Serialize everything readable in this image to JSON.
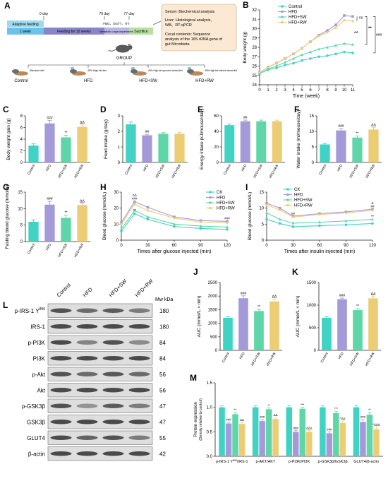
{
  "panel_labels": {
    "A": "A",
    "B": "B",
    "C": "C",
    "D": "D",
    "E": "E",
    "F": "F",
    "G": "G",
    "H": "H",
    "I": "I",
    "J": "J",
    "K": "K",
    "L": "L",
    "M": "M"
  },
  "colors": {
    "control": "#40d2c3",
    "hfd": "#a59ad9",
    "sw": "#5ed6a8",
    "rw": "#edcc76",
    "wb_bg": "#dedede",
    "band": "#3a3a3a"
  },
  "groups": [
    "Control",
    "HFD",
    "HFD+SW",
    "HFD+RW"
  ],
  "panel_A": {
    "timeline": {
      "days": [
        "0 day",
        "70 day",
        "77 day"
      ],
      "segments": [
        "Adaptive feeding",
        "1 week",
        "Feeding for 10 weeks",
        "FBG、OGTT、ITT",
        "Metabolic cage experiment",
        "Sacrifice"
      ]
    },
    "analysis_lines": [
      "Serum:  Biochemical analysis",
      "Liver: Histological analysis,",
      "WB、RT-qPCR",
      "Cecal contents:  Sequence",
      "analysis of the 16S rRNA gene of",
      "gut Microbiota"
    ],
    "group_title": "GROUP",
    "diets": [
      {
        "desc": "Standard diet",
        "label": "Control"
      },
      {
        "desc": "45% High-fat diet",
        "label": "HFD"
      },
      {
        "desc": "45% High-fat sprouted wheat diet",
        "label": "HFD+SW"
      },
      {
        "desc": "45% High-fat refined wheat diet",
        "label": "HFD+RW"
      }
    ]
  },
  "chart_data": [
    {
      "id": "B",
      "type": "line",
      "xlabel": "Time (week)",
      "ylabel": "Body weight (g)",
      "x": [
        0,
        1,
        2,
        3,
        4,
        5,
        6,
        7,
        8,
        9,
        10,
        11
      ],
      "xlim": [
        0,
        11
      ],
      "ylim": [
        24,
        32
      ],
      "yticks": [
        24,
        25,
        26,
        27,
        28,
        29,
        30,
        31,
        32
      ],
      "series": [
        {
          "name": "Control",
          "values": [
            25.2,
            25.6,
            25.8,
            26.1,
            26.3,
            26.6,
            26.8,
            27.0,
            27.1,
            27.3,
            27.5,
            27.4
          ]
        },
        {
          "name": "HFD",
          "values": [
            25.3,
            25.9,
            26.3,
            26.8,
            27.3,
            27.9,
            28.6,
            29.3,
            29.8,
            30.4,
            31.4,
            31.3
          ]
        },
        {
          "name": "HFD+SW",
          "values": [
            25.2,
            25.7,
            26.0,
            26.4,
            26.8,
            27.2,
            27.5,
            27.8,
            28.0,
            28.2,
            28.4,
            28.3
          ]
        },
        {
          "name": "HFD+RW",
          "values": [
            25.3,
            25.9,
            26.3,
            26.8,
            27.3,
            27.9,
            28.6,
            29.2,
            29.6,
            30.1,
            30.9,
            30.8
          ]
        }
      ],
      "annotations": [
        "ns",
        "ΔΔ",
        "**",
        "###"
      ]
    },
    {
      "id": "C",
      "type": "bar",
      "ylabel": "Body weight gain (g)",
      "categories": [
        "Control",
        "HFD",
        "HFD+SW",
        "HFD+RW"
      ],
      "values": [
        2.9,
        6.7,
        4.3,
        6.1
      ],
      "errors": [
        0.3,
        0.5,
        0.35,
        0.35
      ],
      "ylim": [
        0,
        8
      ],
      "yticks": [
        0,
        2,
        4,
        6,
        8
      ],
      "sig": [
        "",
        "###",
        "**",
        "ΔΔ"
      ]
    },
    {
      "id": "D",
      "type": "bar",
      "ylabel": "Food intake (g/day)",
      "categories": [
        "Control",
        "HFD",
        "HFD+SW",
        "HFD+RW"
      ],
      "values": [
        2.45,
        1.75,
        1.85,
        1.85
      ],
      "errors": [
        0.15,
        0.06,
        0.07,
        0.1
      ],
      "ylim": [
        0,
        3
      ],
      "yticks": [
        0,
        1,
        2,
        3
      ],
      "sig": [
        "",
        "##",
        "",
        ""
      ]
    },
    {
      "id": "E",
      "type": "bar",
      "ylabel": "Energy intake (kJ/mouse/day)",
      "categories": [
        "Control",
        "HFD",
        "HFD+SW",
        "HFD+RW"
      ],
      "values": [
        48,
        53,
        53,
        53
      ],
      "errors": [
        1.5,
        1.5,
        1.5,
        1.5
      ],
      "ylim": [
        0,
        60
      ],
      "yticks": [
        0,
        20,
        40,
        60
      ],
      "sig": [
        "",
        "##",
        "",
        ""
      ]
    },
    {
      "id": "F",
      "type": "bar",
      "ylabel": "Water intake (ml/mouse/day)",
      "categories": [
        "Control",
        "HFD",
        "HFD+SW",
        "HFD+RW"
      ],
      "values": [
        5.8,
        10.3,
        8.0,
        10.6
      ],
      "errors": [
        0.3,
        0.6,
        0.5,
        0.6
      ],
      "ylim": [
        0,
        15
      ],
      "yticks": [
        0,
        5,
        10,
        15
      ],
      "sig": [
        "",
        "###",
        "**",
        "ΔΔ"
      ]
    },
    {
      "id": "G",
      "type": "bar",
      "ylabel": "Fasting blood glucose (mmol/L)",
      "categories": [
        "Control",
        "HFD",
        "HFD+SW",
        "HFD+RW"
      ],
      "values": [
        6,
        11.2,
        7.2,
        11.1
      ],
      "errors": [
        0.6,
        1.0,
        0.8,
        0.4
      ],
      "ylim": [
        0,
        15
      ],
      "yticks": [
        0,
        5,
        10,
        15
      ],
      "sig": [
        "",
        "###",
        "**",
        "ΔΔ"
      ]
    },
    {
      "id": "H",
      "type": "line",
      "xlabel": "Times after glucose injected (min)",
      "ylabel": "Blood glucose (mmol/L)",
      "x": [
        0,
        15,
        30,
        60,
        90,
        120
      ],
      "xlim": [
        0,
        120
      ],
      "ylim": [
        0,
        30
      ],
      "xticks": [
        0,
        30,
        60,
        90,
        120
      ],
      "yticks": [
        0,
        10,
        20,
        30
      ],
      "series": [
        {
          "name": "CK",
          "values": [
            5.5,
            16.5,
            13,
            8.5,
            7.3,
            6.7
          ]
        },
        {
          "name": "HFD",
          "values": [
            11,
            24,
            20.5,
            14.5,
            12.2,
            11.7
          ]
        },
        {
          "name": "HFD+SW",
          "values": [
            7,
            18.5,
            14.5,
            10,
            8.8,
            8.2
          ]
        },
        {
          "name": "HFD+RW",
          "values": [
            10,
            22.5,
            18.5,
            13.8,
            11.3,
            10.8
          ]
        }
      ],
      "annotations": [
        "ΔΔ",
        "###",
        "**",
        "###"
      ]
    },
    {
      "id": "I",
      "type": "line",
      "xlabel": "Times after insulin injected (min)",
      "ylabel": "Blood glucose (mmol/L)",
      "x": [
        0,
        15,
        30,
        60,
        90,
        120
      ],
      "xlim": [
        0,
        120
      ],
      "ylim": [
        0,
        15
      ],
      "xticks": [
        0,
        30,
        60,
        90,
        120
      ],
      "yticks": [
        0,
        5,
        10,
        15
      ],
      "series": [
        {
          "name": "CK",
          "values": [
            6.5,
            5.2,
            4.2,
            4.5,
            4.8,
            5.2
          ]
        },
        {
          "name": "HFD",
          "values": [
            11.5,
            10,
            7.5,
            8.3,
            8.8,
            9.7
          ]
        },
        {
          "name": "HFD+SW",
          "values": [
            8.5,
            6.5,
            5.3,
            5.6,
            6,
            6.5
          ]
        },
        {
          "name": "HFD+RW",
          "values": [
            11,
            9.4,
            7.2,
            8,
            8.5,
            9.3
          ]
        }
      ],
      "annotations": [
        "Δ",
        "##",
        "**",
        "##"
      ]
    },
    {
      "id": "J",
      "type": "bar",
      "ylabel": "AUC (mmol/L × min)",
      "categories": [
        "Control",
        "HFD",
        "HFD+SW",
        "HFD+RW"
      ],
      "values": [
        1200,
        1920,
        1450,
        1800
      ],
      "errors": [
        40,
        90,
        60,
        90
      ],
      "ylim": [
        0,
        2500
      ],
      "yticks": [
        0,
        500,
        1000,
        1500,
        2000,
        2500
      ],
      "sig": [
        "",
        "###",
        "**",
        "ΔΔ"
      ]
    },
    {
      "id": "K",
      "type": "bar",
      "ylabel": "AUC (mmol/L × min)",
      "categories": [
        "Control",
        "HFD",
        "HFD+SW",
        "HFD+RW"
      ],
      "values": [
        720,
        1130,
        890,
        1150
      ],
      "errors": [
        20,
        25,
        30,
        40
      ],
      "ylim": [
        0,
        1500
      ],
      "yticks": [
        0,
        500,
        1000,
        1500
      ],
      "sig": [
        "",
        "###",
        "**",
        "ΔΔ"
      ]
    },
    {
      "id": "M",
      "type": "bar",
      "ylabel": "Protein expression (Density relative to control)",
      "categories": [
        "p-IRS-1 Y896/IRS-1",
        "p-AKT/AKT",
        "p-PI3K/PI3K",
        "p-GSK3β/GSK3β",
        "GLUT4/β-actin"
      ],
      "ylim": [
        0,
        1.5
      ],
      "yticks": [
        0,
        0.5,
        1.0,
        1.5
      ],
      "series": [
        {
          "name": "Control",
          "values": [
            1,
            1,
            1,
            1,
            1
          ],
          "errors": [
            0.03,
            0.03,
            0.03,
            0.03,
            0.03
          ]
        },
        {
          "name": "HFD",
          "values": [
            0.67,
            0.72,
            0.5,
            0.47,
            0.7
          ],
          "errors": [
            0.03,
            0.03,
            0.03,
            0.03,
            0.05
          ]
        },
        {
          "name": "HFD+SW",
          "values": [
            0.86,
            0.96,
            0.97,
            0.88,
            0.85
          ],
          "errors": [
            0.04,
            0.03,
            0.03,
            0.04,
            0.05
          ]
        },
        {
          "name": "HFD+RW",
          "values": [
            0.66,
            0.76,
            0.5,
            0.68,
            0.55
          ],
          "errors": [
            0.03,
            0.03,
            0.03,
            0.04,
            0.05
          ]
        }
      ],
      "sig": [
        [
          "",
          "###",
          "**",
          "ΔΔ"
        ],
        [
          "",
          "###",
          "**",
          "ΔΔ"
        ],
        [
          "",
          "###",
          "***",
          "ΔΔΔ"
        ],
        [
          "",
          "###",
          "***",
          "*ΔΔ"
        ],
        [
          "",
          "###",
          "**",
          "*ΔΔΔ"
        ]
      ]
    }
  ],
  "panel_L": {
    "mw_label": "Mw kDa",
    "columns": [
      "Control",
      "HFD",
      "HFD+SW",
      "HFD+RW"
    ],
    "rows": [
      {
        "name": "p-IRS-1 Y",
        "sup": "896",
        "mw": "180",
        "int": [
          0.85,
          0.7,
          0.8,
          0.6
        ]
      },
      {
        "name": "IRS-1",
        "sup": "",
        "mw": "180",
        "int": [
          0.9,
          0.9,
          0.9,
          0.9
        ]
      },
      {
        "name": "p-PI3K",
        "sup": "",
        "mw": "84",
        "int": [
          0.9,
          0.55,
          0.85,
          0.5
        ]
      },
      {
        "name": "PI3K",
        "sup": "",
        "mw": "84",
        "int": [
          0.9,
          0.9,
          0.9,
          0.9
        ]
      },
      {
        "name": "p-Akt",
        "sup": "",
        "mw": "56",
        "int": [
          0.85,
          0.7,
          0.82,
          0.7
        ]
      },
      {
        "name": "Akt",
        "sup": "",
        "mw": "56",
        "int": [
          0.9,
          0.9,
          0.9,
          0.9
        ]
      },
      {
        "name": "p-GSK3β",
        "sup": "",
        "mw": "47",
        "int": [
          0.85,
          0.45,
          0.8,
          0.6
        ]
      },
      {
        "name": "GSK3β",
        "sup": "",
        "mw": "47",
        "int": [
          0.9,
          0.9,
          0.9,
          0.9
        ]
      },
      {
        "name": "GLUT4",
        "sup": "",
        "mw": "55",
        "int": [
          0.9,
          0.75,
          0.85,
          0.6
        ]
      },
      {
        "name": "β-actin",
        "sup": "",
        "mw": "42",
        "int": [
          0.9,
          0.9,
          0.9,
          0.9
        ]
      }
    ]
  }
}
